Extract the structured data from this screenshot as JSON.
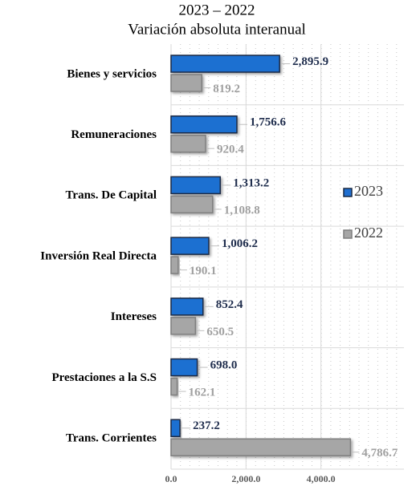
{
  "chart_data": {
    "type": "hbar",
    "title": "2023 – 2022",
    "subtitle": "Variación absoluta interanual",
    "categories": [
      "Bienes y servicios",
      "Remuneraciones",
      "Trans. De Capital",
      "Inversión Real Directa",
      "Intereses",
      "Prestaciones a la S.S",
      "Trans. Corrientes"
    ],
    "series": [
      {
        "name": "2023",
        "color": "#1f6fd1",
        "label_color": "#1f2d4d",
        "values": [
          2895.9,
          1756.6,
          1313.2,
          1006.2,
          852.4,
          698.0,
          237.2
        ],
        "value_labels": [
          "2,895.9",
          "1,756.6",
          "1,313.2",
          "1,006.2",
          "852.4",
          "698.0",
          "237.2"
        ]
      },
      {
        "name": "2022",
        "color": "#a6a6a6",
        "label_color": "#a0a0a0",
        "values": [
          819.2,
          920.4,
          1108.8,
          190.1,
          650.5,
          162.1,
          4786.7
        ],
        "value_labels": [
          "819.2",
          "920.4",
          "1,108.8",
          "190.1",
          "650.5",
          "162.1",
          "4,786.7"
        ]
      }
    ],
    "xlim": [
      0,
      6000
    ],
    "xticks": [
      {
        "value": 0,
        "label": "0.0"
      },
      {
        "value": 2000,
        "label": "2,000.0"
      },
      {
        "value": 4000,
        "label": "4,000.0"
      }
    ],
    "grid": true,
    "legend": "right"
  }
}
